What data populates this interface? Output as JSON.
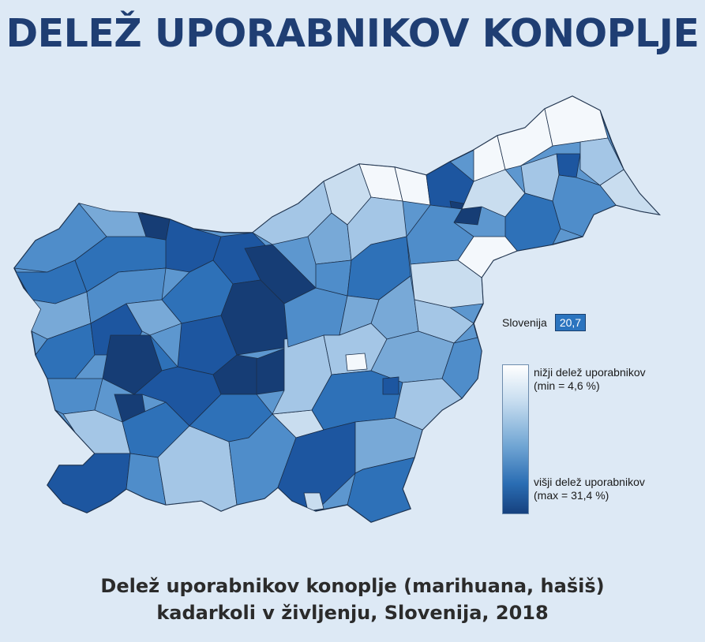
{
  "title": "DELEŽ UPORABNIKOV KONOPLJE",
  "national": {
    "label": "Slovenija",
    "value": "20,7"
  },
  "legend": {
    "low_label": "nižji delež uporabnikov",
    "low_value": "(min = 4,6 %)",
    "high_label": "višji delež uporabnikov",
    "high_value": "(max = 31,4 %)",
    "min_pct": 4.6,
    "max_pct": 31.4,
    "colors": {
      "low": "#ffffff",
      "mid": "#6fa4d3",
      "high": "#16417f"
    }
  },
  "caption": {
    "line1": "Delež uporabnikov konoplje (marihuana, hašiš)",
    "line2": "kadarkoli v življenju, Slovenija, 2018"
  },
  "colors": {
    "background": "#dde9f5",
    "title": "#1f3e73",
    "country_base": "#5d97cf",
    "region_palette": [
      "#f4f8fc",
      "#c9ddef",
      "#a4c6e6",
      "#78a9d7",
      "#4f8dca",
      "#2e71b8",
      "#1d56a0",
      "#163d75"
    ]
  }
}
